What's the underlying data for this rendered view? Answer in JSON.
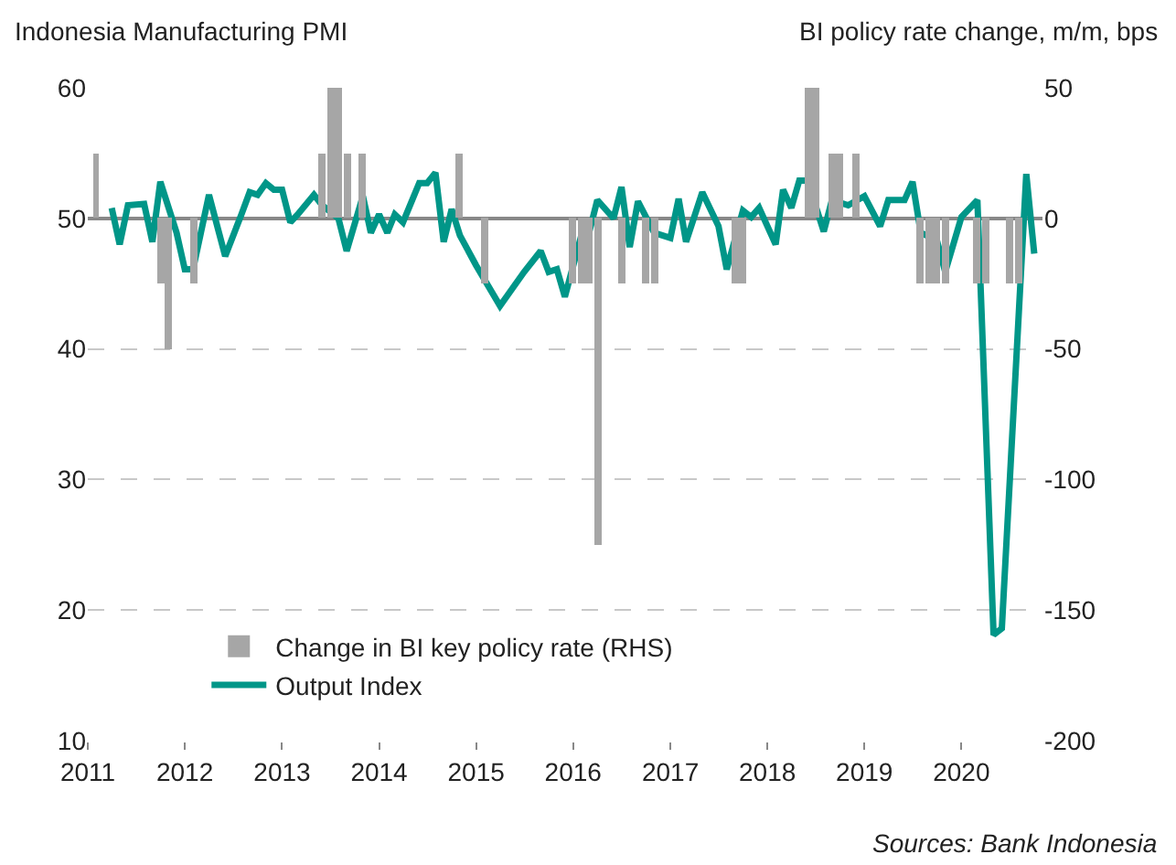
{
  "chart_data": {
    "type": "line",
    "ylabel": "Indonesia Manufacturing PMI",
    "y2label": "BI policy rate change, m/m, bps",
    "series": [
      {
        "name": "Change in BI key policy rate (RHS)",
        "type": "bar",
        "axis": "y2",
        "color": "#a6a6a6",
        "x": [
          "2011-02",
          "2011-10",
          "2011-11",
          "2012-02",
          "2013-06",
          "2013-07",
          "2013-08",
          "2013-09",
          "2013-11",
          "2014-11",
          "2015-02",
          "2016-01",
          "2016-02",
          "2016-03",
          "2016-04",
          "2016-07",
          "2016-10",
          "2016-11",
          "2017-09",
          "2017-10",
          "2018-06",
          "2018-07",
          "2018-09",
          "2018-10",
          "2018-12",
          "2019-08",
          "2019-09",
          "2019-10",
          "2019-11",
          "2020-03",
          "2020-04",
          "2020-07",
          "2020-08"
        ],
        "values": [
          25,
          -25,
          -50,
          -25,
          25,
          50,
          50,
          25,
          25,
          25,
          -25,
          -25,
          -25,
          -25,
          -125,
          -25,
          -25,
          -25,
          -25,
          -25,
          50,
          50,
          25,
          25,
          25,
          -25,
          -25,
          -25,
          -25,
          -25,
          -25,
          -25,
          -25
        ]
      },
      {
        "name": "Output Index",
        "color": "#009688",
        "x": [
          "2011-04",
          "2011-05",
          "2011-06",
          "2011-08",
          "2011-09",
          "2011-10",
          "2011-12",
          "2012-01",
          "2012-02",
          "2012-04",
          "2012-06",
          "2012-08",
          "2012-09",
          "2012-10",
          "2012-11",
          "2012-12",
          "2013-01",
          "2013-02",
          "2013-03",
          "2013-05",
          "2013-06",
          "2013-08",
          "2013-09",
          "2013-11",
          "2013-12",
          "2014-01",
          "2014-02",
          "2014-03",
          "2014-04",
          "2014-06",
          "2014-07",
          "2014-08",
          "2014-09",
          "2014-10",
          "2014-11",
          "2015-01",
          "2015-04",
          "2015-07",
          "2015-09",
          "2015-10",
          "2015-11",
          "2015-12",
          "2016-02",
          "2016-03",
          "2016-04",
          "2016-06",
          "2016-07",
          "2016-08",
          "2016-09",
          "2016-11",
          "2017-01",
          "2017-02",
          "2017-03",
          "2017-05",
          "2017-07",
          "2017-08",
          "2017-10",
          "2017-11",
          "2017-12",
          "2018-02",
          "2018-03",
          "2018-04",
          "2018-05",
          "2018-06",
          "2018-08",
          "2018-09",
          "2018-11",
          "2019-01",
          "2019-03",
          "2019-04",
          "2019-06",
          "2019-07",
          "2019-08",
          "2019-10",
          "2019-11",
          "2020-01",
          "2020-03",
          "2020-05",
          "2020-06",
          "2020-09",
          "2020-10"
        ],
        "values": [
          50.8,
          48,
          51,
          51.1,
          48.2,
          52.8,
          48.9,
          46.1,
          46.1,
          51.8,
          47.1,
          50.3,
          52,
          51.8,
          52.7,
          52.2,
          52.2,
          49.7,
          50.3,
          51.8,
          51,
          50,
          47.5,
          51.7,
          48.9,
          50.3,
          48.9,
          50.3,
          49.7,
          52.7,
          52.7,
          53.5,
          48.2,
          50.7,
          48.7,
          46.4,
          43.3,
          45.9,
          47.5,
          45.9,
          46.1,
          44,
          48.7,
          48.9,
          51.4,
          50,
          52.4,
          47.8,
          51.3,
          48.9,
          48.5,
          51.5,
          48.2,
          52,
          49.4,
          46.1,
          50.6,
          50.1,
          50.8,
          48,
          52.2,
          50.8,
          52.9,
          52.9,
          49,
          51.4,
          51,
          51.7,
          49.4,
          51.4,
          51.4,
          52.8,
          48.9,
          48.3,
          45.9,
          50.1,
          51.4,
          18.1,
          18.6,
          53.4,
          47.3
        ]
      }
    ],
    "xlim": [
      "2011-01-01",
      "2020-11-01"
    ],
    "xticks": [
      "2011",
      "2012",
      "2013",
      "2014",
      "2015",
      "2016",
      "2017",
      "2018",
      "2019",
      "2020"
    ],
    "ylim": [
      10,
      60
    ],
    "yticks": [
      10,
      20,
      30,
      40,
      50,
      60
    ],
    "y2lim": [
      -200,
      50
    ],
    "y2ticks": [
      -200,
      -150,
      -100,
      -50,
      0,
      50
    ],
    "grid": "y",
    "legend": "bottom left",
    "line_style": "solid",
    "marker": "none",
    "annotations": [
      "Sources: Bank Indonesia"
    ]
  }
}
